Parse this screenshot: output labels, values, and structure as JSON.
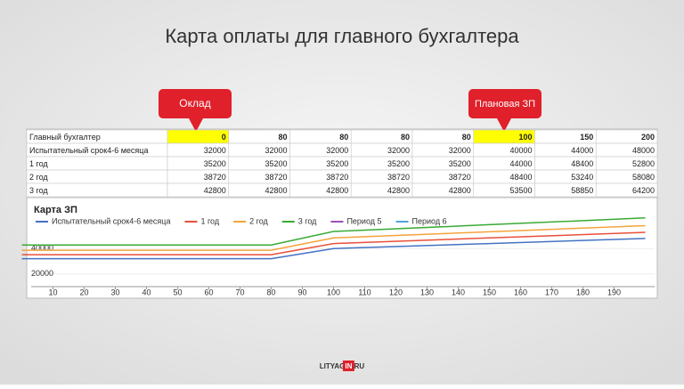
{
  "title": "Карта оплаты для главного бухгалтера",
  "callouts": [
    "Оклад",
    "Плановая ЗП"
  ],
  "table": {
    "header": [
      "Главный бухгалтер",
      0,
      80,
      80,
      80,
      80,
      100,
      150,
      200
    ],
    "rows": [
      [
        "Испытательный срок4-6 месяца",
        32000,
        32000,
        32000,
        32000,
        32000,
        40000,
        44000,
        48000
      ],
      [
        "1 год",
        35200,
        35200,
        35200,
        35200,
        35200,
        44000,
        48400,
        52800
      ],
      [
        "2 год",
        38720,
        38720,
        38720,
        38720,
        38720,
        48400,
        53240,
        58080
      ],
      [
        "3 год",
        42800,
        42800,
        42800,
        42800,
        42800,
        53500,
        58850,
        64200
      ]
    ]
  },
  "chart_data": {
    "type": "line",
    "title": "Карта ЗП",
    "series": [
      {
        "name": "Испытательный срок4-6 месяца",
        "color": "#4472c4"
      },
      {
        "name": "1 год",
        "color": "#e8503a"
      },
      {
        "name": "2 год",
        "color": "#f5a33a"
      },
      {
        "name": "3 год",
        "color": "#3aaa35"
      },
      {
        "name": "Период 5",
        "color": "#9b4fb5"
      },
      {
        "name": "Период 6",
        "color": "#4fa6d8"
      }
    ],
    "xlim": [
      3,
      203
    ],
    "xticks": [
      10,
      20,
      30,
      40,
      50,
      60,
      70,
      80,
      90,
      100,
      110,
      120,
      130,
      140,
      150,
      160,
      170,
      180,
      190
    ],
    "ylim": [
      10000,
      76000
    ],
    "yticks": [
      20000,
      40000
    ]
  },
  "footer": {
    "parts": [
      "LITYAG",
      "IN",
      ".RU"
    ]
  }
}
